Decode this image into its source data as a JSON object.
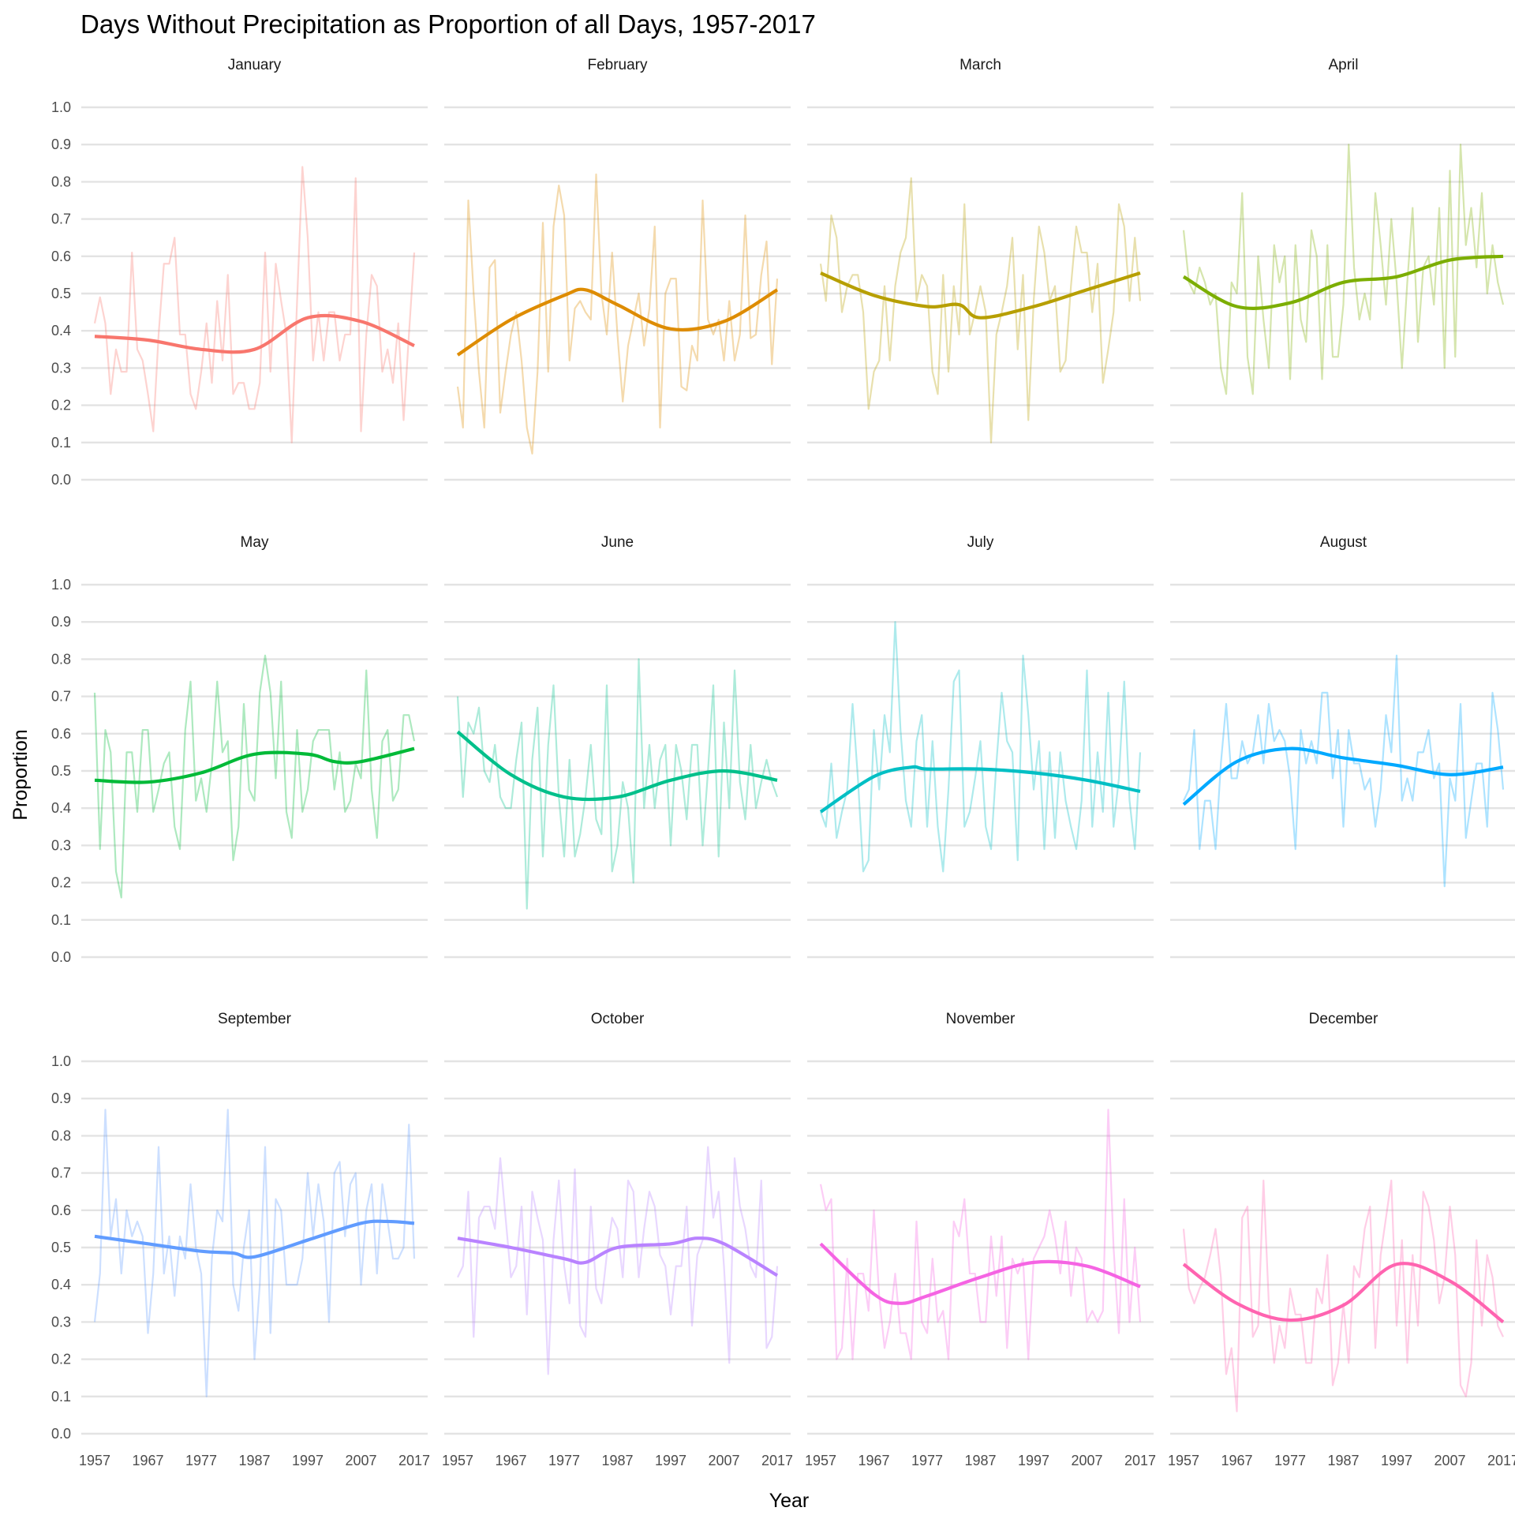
{
  "chart_data": {
    "type": "line",
    "title": "Days Without Precipitation as Proportion of all Days, 1957-2017",
    "xlabel": "Year",
    "ylabel": "Proportion",
    "xlim": [
      1957,
      2017
    ],
    "ylim": [
      0,
      1
    ],
    "x_ticks": [
      "1957",
      "1967",
      "1977",
      "1987",
      "1997",
      "2007",
      "2017"
    ],
    "y_ticks": [
      "0.0",
      "0.1",
      "0.2",
      "0.3",
      "0.4",
      "0.5",
      "0.6",
      "0.7",
      "0.8",
      "0.9",
      "1.0"
    ],
    "facets_layout": "3 rows x 4 columns",
    "grid": "horizontal major gridlines",
    "legend": "none",
    "panels": [
      {
        "label": "January",
        "color": "#F8766D",
        "raw": [
          0.42,
          0.49,
          0.42,
          0.23,
          0.35,
          0.29,
          0.29,
          0.61,
          0.35,
          0.32,
          0.23,
          0.13,
          0.39,
          0.58,
          0.58,
          0.65,
          0.39,
          0.39,
          0.23,
          0.19,
          0.29,
          0.42,
          0.26,
          0.48,
          0.32,
          0.55,
          0.23,
          0.26,
          0.26,
          0.19,
          0.19,
          0.26,
          0.61,
          0.29,
          0.58,
          0.48,
          0.39,
          0.1,
          0.48,
          0.84,
          0.65,
          0.32,
          0.45,
          0.32,
          0.45,
          0.45,
          0.32,
          0.39,
          0.39,
          0.81,
          0.13,
          0.39,
          0.55,
          0.52,
          0.29,
          0.35,
          0.26,
          0.42,
          0.16,
          0.39,
          0.61
        ],
        "smooth": [
          [
            1957,
            0.385
          ],
          [
            1967,
            0.375
          ],
          [
            1977,
            0.35
          ],
          [
            1987,
            0.35
          ],
          [
            1997,
            0.435
          ],
          [
            2007,
            0.425
          ],
          [
            2017,
            0.36
          ]
        ]
      },
      {
        "label": "February",
        "color": "#DE8C00",
        "raw": [
          0.25,
          0.14,
          0.75,
          0.5,
          0.29,
          0.14,
          0.57,
          0.59,
          0.18,
          0.29,
          0.39,
          0.45,
          0.32,
          0.14,
          0.07,
          0.29,
          0.69,
          0.29,
          0.68,
          0.79,
          0.71,
          0.32,
          0.46,
          0.48,
          0.45,
          0.43,
          0.82,
          0.5,
          0.39,
          0.61,
          0.39,
          0.21,
          0.36,
          0.43,
          0.5,
          0.36,
          0.46,
          0.68,
          0.14,
          0.5,
          0.54,
          0.54,
          0.25,
          0.24,
          0.36,
          0.32,
          0.75,
          0.43,
          0.39,
          0.43,
          0.32,
          0.48,
          0.32,
          0.39,
          0.71,
          0.38,
          0.39,
          0.55,
          0.64,
          0.31,
          0.54
        ],
        "smooth": [
          [
            1957,
            0.335
          ],
          [
            1967,
            0.43
          ],
          [
            1977,
            0.495
          ],
          [
            1981,
            0.51
          ],
          [
            1987,
            0.47
          ],
          [
            1997,
            0.405
          ],
          [
            2007,
            0.425
          ],
          [
            2017,
            0.51
          ]
        ]
      },
      {
        "label": "March",
        "color": "#B79F00",
        "raw": [
          0.58,
          0.48,
          0.71,
          0.65,
          0.45,
          0.52,
          0.55,
          0.55,
          0.45,
          0.19,
          0.29,
          0.32,
          0.52,
          0.32,
          0.52,
          0.61,
          0.65,
          0.81,
          0.48,
          0.55,
          0.52,
          0.29,
          0.23,
          0.55,
          0.29,
          0.52,
          0.39,
          0.74,
          0.39,
          0.45,
          0.52,
          0.45,
          0.1,
          0.39,
          0.45,
          0.52,
          0.65,
          0.35,
          0.55,
          0.16,
          0.48,
          0.68,
          0.61,
          0.48,
          0.52,
          0.29,
          0.32,
          0.52,
          0.68,
          0.61,
          0.61,
          0.45,
          0.58,
          0.26,
          0.35,
          0.45,
          0.74,
          0.68,
          0.48,
          0.65,
          0.48
        ],
        "smooth": [
          [
            1957,
            0.555
          ],
          [
            1967,
            0.495
          ],
          [
            1977,
            0.465
          ],
          [
            1983,
            0.47
          ],
          [
            1987,
            0.435
          ],
          [
            1997,
            0.465
          ],
          [
            2007,
            0.51
          ],
          [
            2017,
            0.555
          ]
        ]
      },
      {
        "label": "April",
        "color": "#7CAE00",
        "raw": [
          0.67,
          0.53,
          0.5,
          0.57,
          0.53,
          0.47,
          0.5,
          0.3,
          0.23,
          0.53,
          0.5,
          0.77,
          0.33,
          0.23,
          0.6,
          0.43,
          0.3,
          0.63,
          0.53,
          0.6,
          0.27,
          0.63,
          0.43,
          0.37,
          0.67,
          0.6,
          0.27,
          0.63,
          0.33,
          0.33,
          0.47,
          0.9,
          0.57,
          0.43,
          0.5,
          0.43,
          0.77,
          0.63,
          0.47,
          0.7,
          0.53,
          0.3,
          0.53,
          0.73,
          0.37,
          0.57,
          0.6,
          0.47,
          0.73,
          0.3,
          0.83,
          0.33,
          0.9,
          0.63,
          0.73,
          0.57,
          0.77,
          0.5,
          0.63,
          0.53,
          0.47
        ],
        "smooth": [
          [
            1957,
            0.545
          ],
          [
            1967,
            0.465
          ],
          [
            1977,
            0.475
          ],
          [
            1987,
            0.53
          ],
          [
            1997,
            0.545
          ],
          [
            2007,
            0.59
          ],
          [
            2017,
            0.6
          ]
        ]
      },
      {
        "label": "May",
        "color": "#00BA38",
        "raw": [
          0.71,
          0.29,
          0.61,
          0.55,
          0.23,
          0.16,
          0.55,
          0.55,
          0.39,
          0.61,
          0.61,
          0.39,
          0.45,
          0.52,
          0.55,
          0.35,
          0.29,
          0.61,
          0.74,
          0.42,
          0.48,
          0.39,
          0.52,
          0.74,
          0.55,
          0.58,
          0.26,
          0.35,
          0.68,
          0.45,
          0.42,
          0.71,
          0.81,
          0.71,
          0.48,
          0.74,
          0.39,
          0.32,
          0.61,
          0.39,
          0.45,
          0.58,
          0.61,
          0.61,
          0.61,
          0.45,
          0.55,
          0.39,
          0.42,
          0.52,
          0.48,
          0.77,
          0.45,
          0.32,
          0.58,
          0.61,
          0.42,
          0.45,
          0.65,
          0.65,
          0.58
        ],
        "smooth": [
          [
            1957,
            0.475
          ],
          [
            1967,
            0.47
          ],
          [
            1977,
            0.495
          ],
          [
            1987,
            0.545
          ],
          [
            1997,
            0.545
          ],
          [
            2002,
            0.525
          ],
          [
            2007,
            0.525
          ],
          [
            2017,
            0.56
          ]
        ]
      },
      {
        "label": "June",
        "color": "#00C08B",
        "raw": [
          0.7,
          0.43,
          0.63,
          0.6,
          0.67,
          0.5,
          0.47,
          0.57,
          0.43,
          0.4,
          0.4,
          0.53,
          0.63,
          0.13,
          0.53,
          0.67,
          0.27,
          0.57,
          0.73,
          0.43,
          0.27,
          0.53,
          0.27,
          0.33,
          0.43,
          0.57,
          0.37,
          0.33,
          0.73,
          0.23,
          0.3,
          0.47,
          0.4,
          0.2,
          0.8,
          0.4,
          0.57,
          0.4,
          0.53,
          0.57,
          0.3,
          0.57,
          0.5,
          0.37,
          0.57,
          0.57,
          0.3,
          0.5,
          0.73,
          0.27,
          0.63,
          0.4,
          0.77,
          0.47,
          0.37,
          0.57,
          0.4,
          0.47,
          0.53,
          0.47,
          0.43
        ],
        "smooth": [
          [
            1957,
            0.605
          ],
          [
            1967,
            0.49
          ],
          [
            1977,
            0.43
          ],
          [
            1987,
            0.43
          ],
          [
            1997,
            0.475
          ],
          [
            2007,
            0.5
          ],
          [
            2017,
            0.475
          ]
        ]
      },
      {
        "label": "July",
        "color": "#00BFC4",
        "raw": [
          0.39,
          0.35,
          0.52,
          0.32,
          0.39,
          0.45,
          0.68,
          0.48,
          0.23,
          0.26,
          0.61,
          0.45,
          0.65,
          0.55,
          0.9,
          0.61,
          0.42,
          0.35,
          0.58,
          0.65,
          0.35,
          0.58,
          0.35,
          0.23,
          0.45,
          0.74,
          0.77,
          0.35,
          0.39,
          0.48,
          0.58,
          0.35,
          0.29,
          0.52,
          0.71,
          0.58,
          0.55,
          0.26,
          0.81,
          0.65,
          0.45,
          0.58,
          0.29,
          0.55,
          0.32,
          0.55,
          0.42,
          0.35,
          0.29,
          0.42,
          0.77,
          0.35,
          0.55,
          0.39,
          0.71,
          0.35,
          0.48,
          0.74,
          0.42,
          0.29,
          0.55
        ],
        "smooth": [
          [
            1957,
            0.39
          ],
          [
            1967,
            0.485
          ],
          [
            1974,
            0.51
          ],
          [
            1977,
            0.505
          ],
          [
            1987,
            0.505
          ],
          [
            1997,
            0.495
          ],
          [
            2007,
            0.475
          ],
          [
            2017,
            0.445
          ]
        ]
      },
      {
        "label": "August",
        "color": "#00A9FF",
        "raw": [
          0.42,
          0.45,
          0.61,
          0.29,
          0.42,
          0.42,
          0.29,
          0.52,
          0.68,
          0.48,
          0.48,
          0.58,
          0.52,
          0.55,
          0.65,
          0.52,
          0.68,
          0.58,
          0.61,
          0.58,
          0.48,
          0.29,
          0.61,
          0.52,
          0.58,
          0.52,
          0.71,
          0.71,
          0.48,
          0.61,
          0.35,
          0.61,
          0.52,
          0.52,
          0.45,
          0.48,
          0.35,
          0.45,
          0.65,
          0.55,
          0.81,
          0.42,
          0.48,
          0.42,
          0.55,
          0.55,
          0.61,
          0.48,
          0.52,
          0.19,
          0.48,
          0.42,
          0.68,
          0.32,
          0.42,
          0.52,
          0.52,
          0.35,
          0.71,
          0.61,
          0.45
        ],
        "smooth": [
          [
            1957,
            0.41
          ],
          [
            1967,
            0.525
          ],
          [
            1977,
            0.56
          ],
          [
            1987,
            0.535
          ],
          [
            1997,
            0.515
          ],
          [
            2007,
            0.49
          ],
          [
            2017,
            0.51
          ]
        ]
      },
      {
        "label": "September",
        "color": "#619CFF",
        "raw": [
          0.3,
          0.43,
          0.87,
          0.53,
          0.63,
          0.43,
          0.6,
          0.53,
          0.57,
          0.53,
          0.27,
          0.43,
          0.77,
          0.43,
          0.53,
          0.37,
          0.53,
          0.47,
          0.67,
          0.5,
          0.43,
          0.1,
          0.47,
          0.6,
          0.57,
          0.87,
          0.4,
          0.33,
          0.5,
          0.6,
          0.2,
          0.4,
          0.77,
          0.27,
          0.63,
          0.6,
          0.4,
          0.4,
          0.4,
          0.47,
          0.7,
          0.53,
          0.67,
          0.57,
          0.3,
          0.7,
          0.73,
          0.53,
          0.67,
          0.7,
          0.4,
          0.6,
          0.67,
          0.43,
          0.67,
          0.57,
          0.47,
          0.47,
          0.5,
          0.83,
          0.47
        ],
        "smooth": [
          [
            1957,
            0.53
          ],
          [
            1967,
            0.51
          ],
          [
            1977,
            0.49
          ],
          [
            1983,
            0.485
          ],
          [
            1987,
            0.475
          ],
          [
            1997,
            0.52
          ],
          [
            2007,
            0.565
          ],
          [
            2012,
            0.57
          ],
          [
            2017,
            0.565
          ]
        ]
      },
      {
        "label": "October",
        "color": "#B983FF",
        "raw": [
          0.42,
          0.45,
          0.65,
          0.26,
          0.58,
          0.61,
          0.61,
          0.55,
          0.74,
          0.58,
          0.42,
          0.45,
          0.61,
          0.32,
          0.65,
          0.58,
          0.52,
          0.16,
          0.52,
          0.68,
          0.45,
          0.35,
          0.71,
          0.29,
          0.26,
          0.61,
          0.39,
          0.35,
          0.48,
          0.58,
          0.55,
          0.42,
          0.68,
          0.65,
          0.42,
          0.55,
          0.65,
          0.61,
          0.48,
          0.45,
          0.32,
          0.45,
          0.45,
          0.61,
          0.29,
          0.48,
          0.52,
          0.77,
          0.58,
          0.65,
          0.45,
          0.19,
          0.74,
          0.61,
          0.55,
          0.45,
          0.42,
          0.68,
          0.23,
          0.26,
          0.45
        ],
        "smooth": [
          [
            1957,
            0.525
          ],
          [
            1967,
            0.5
          ],
          [
            1977,
            0.47
          ],
          [
            1981,
            0.46
          ],
          [
            1987,
            0.5
          ],
          [
            1997,
            0.51
          ],
          [
            2002,
            0.525
          ],
          [
            2007,
            0.51
          ],
          [
            2017,
            0.425
          ]
        ]
      },
      {
        "label": "November",
        "color": "#F564E3",
        "raw": [
          0.67,
          0.6,
          0.63,
          0.2,
          0.23,
          0.47,
          0.2,
          0.43,
          0.43,
          0.33,
          0.6,
          0.37,
          0.23,
          0.3,
          0.43,
          0.27,
          0.27,
          0.2,
          0.57,
          0.3,
          0.27,
          0.47,
          0.3,
          0.33,
          0.2,
          0.57,
          0.53,
          0.63,
          0.43,
          0.43,
          0.3,
          0.3,
          0.53,
          0.37,
          0.53,
          0.23,
          0.47,
          0.43,
          0.47,
          0.2,
          0.47,
          0.5,
          0.53,
          0.6,
          0.53,
          0.43,
          0.57,
          0.37,
          0.5,
          0.47,
          0.3,
          0.33,
          0.3,
          0.33,
          0.87,
          0.5,
          0.27,
          0.63,
          0.3,
          0.5,
          0.3
        ],
        "smooth": [
          [
            1957,
            0.51
          ],
          [
            1967,
            0.375
          ],
          [
            1972,
            0.35
          ],
          [
            1977,
            0.37
          ],
          [
            1987,
            0.42
          ],
          [
            1997,
            0.46
          ],
          [
            2007,
            0.45
          ],
          [
            2017,
            0.395
          ]
        ]
      },
      {
        "label": "December",
        "color": "#FF64B0",
        "raw": [
          0.55,
          0.39,
          0.35,
          0.39,
          0.42,
          0.48,
          0.55,
          0.42,
          0.16,
          0.23,
          0.06,
          0.58,
          0.61,
          0.26,
          0.29,
          0.68,
          0.35,
          0.19,
          0.29,
          0.23,
          0.39,
          0.32,
          0.32,
          0.19,
          0.19,
          0.39,
          0.35,
          0.48,
          0.13,
          0.19,
          0.35,
          0.19,
          0.45,
          0.42,
          0.55,
          0.61,
          0.23,
          0.48,
          0.58,
          0.68,
          0.29,
          0.52,
          0.19,
          0.48,
          0.29,
          0.65,
          0.61,
          0.52,
          0.35,
          0.42,
          0.61,
          0.48,
          0.13,
          0.1,
          0.19,
          0.52,
          0.29,
          0.48,
          0.42,
          0.29,
          0.26
        ],
        "smooth": [
          [
            1957,
            0.455
          ],
          [
            1967,
            0.35
          ],
          [
            1977,
            0.305
          ],
          [
            1987,
            0.345
          ],
          [
            1997,
            0.455
          ],
          [
            2007,
            0.41
          ],
          [
            2017,
            0.3
          ]
        ]
      }
    ]
  }
}
